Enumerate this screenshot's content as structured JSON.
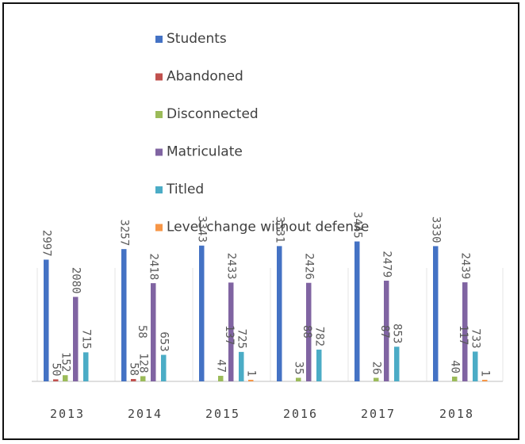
{
  "chart_data": {
    "type": "bar",
    "categories": [
      "2013",
      "2014",
      "2015",
      "2016",
      "2017",
      "2018"
    ],
    "series": [
      {
        "name": "Students",
        "color": "#4472C4",
        "values": [
          2997,
          3257,
          3343,
          3331,
          3445,
          3330
        ]
      },
      {
        "name": "Abandoned",
        "color": "#C0504D",
        "values": [
          50,
          58,
          0,
          0,
          0,
          0
        ]
      },
      {
        "name": "Disconnected",
        "color": "#9BBB59",
        "values": [
          152,
          128,
          137,
          88,
          87,
          117
        ]
      },
      {
        "name": "Matriculate",
        "color": "#8064A2",
        "values": [
          2080,
          2418,
          2433,
          2426,
          2479,
          2439
        ]
      },
      {
        "name": "Titled",
        "color": "#4BACC6",
        "values": [
          715,
          653,
          725,
          782,
          853,
          733
        ]
      },
      {
        "name": "Level change without defense",
        "color": "#F79646",
        "values": [
          0,
          0,
          1,
          0,
          0,
          1
        ]
      }
    ],
    "data_labels": [
      [
        "2997",
        "50",
        "152",
        "2080",
        "715",
        ""
      ],
      [
        "3257",
        "58",
        "128",
        "2418",
        "653",
        ""
      ],
      [
        "3343",
        "",
        "47",
        "2433",
        "725",
        "1"
      ],
      [
        "3331",
        "",
        "35",
        "2426",
        "782",
        ""
      ],
      [
        "3445",
        "",
        "26",
        "2479",
        "853",
        ""
      ],
      [
        "3330",
        "",
        "40",
        "2439",
        "733",
        "1"
      ]
    ],
    "extra_labels": [
      {
        "category": 1,
        "text": "58",
        "series": 1
      },
      {
        "category": 2,
        "text": "137",
        "series": 2
      },
      {
        "category": 3,
        "text": "88",
        "series": 2
      },
      {
        "category": 4,
        "text": "87",
        "series": 2
      },
      {
        "category": 5,
        "text": "117",
        "series": 2
      }
    ],
    "ylim": [
      0,
      3500
    ],
    "legend_position": "top",
    "grid": false
  }
}
